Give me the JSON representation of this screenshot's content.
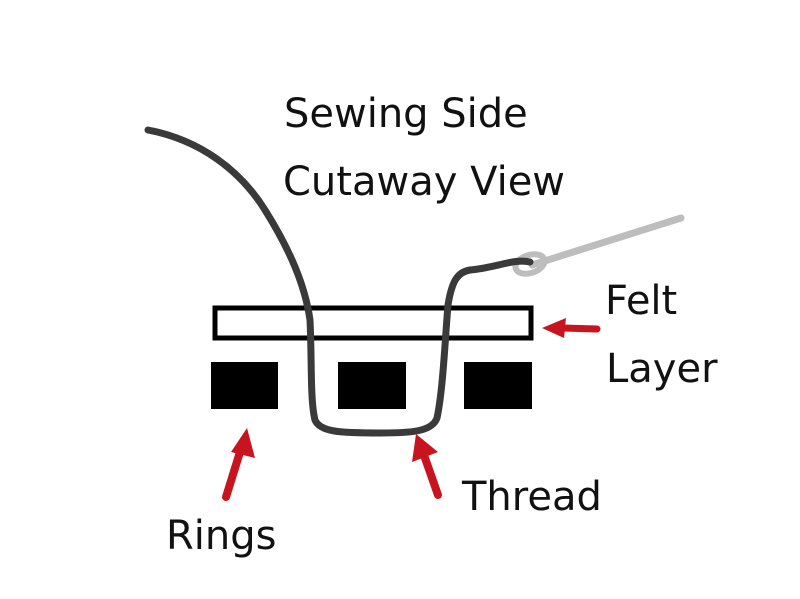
{
  "title": {
    "line1": "Sewing Side",
    "line2": "Cutaway View"
  },
  "labels": {
    "felt_line1": "Felt",
    "felt_line2": "Layer",
    "thread": "Thread",
    "rings": "Rings"
  },
  "colors": {
    "thread": "#3a3a3a",
    "needle": "#bdbdbd",
    "arrow": "#c8141e",
    "rings": "#000000",
    "felt_outline": "#000000",
    "text": "#111111"
  }
}
